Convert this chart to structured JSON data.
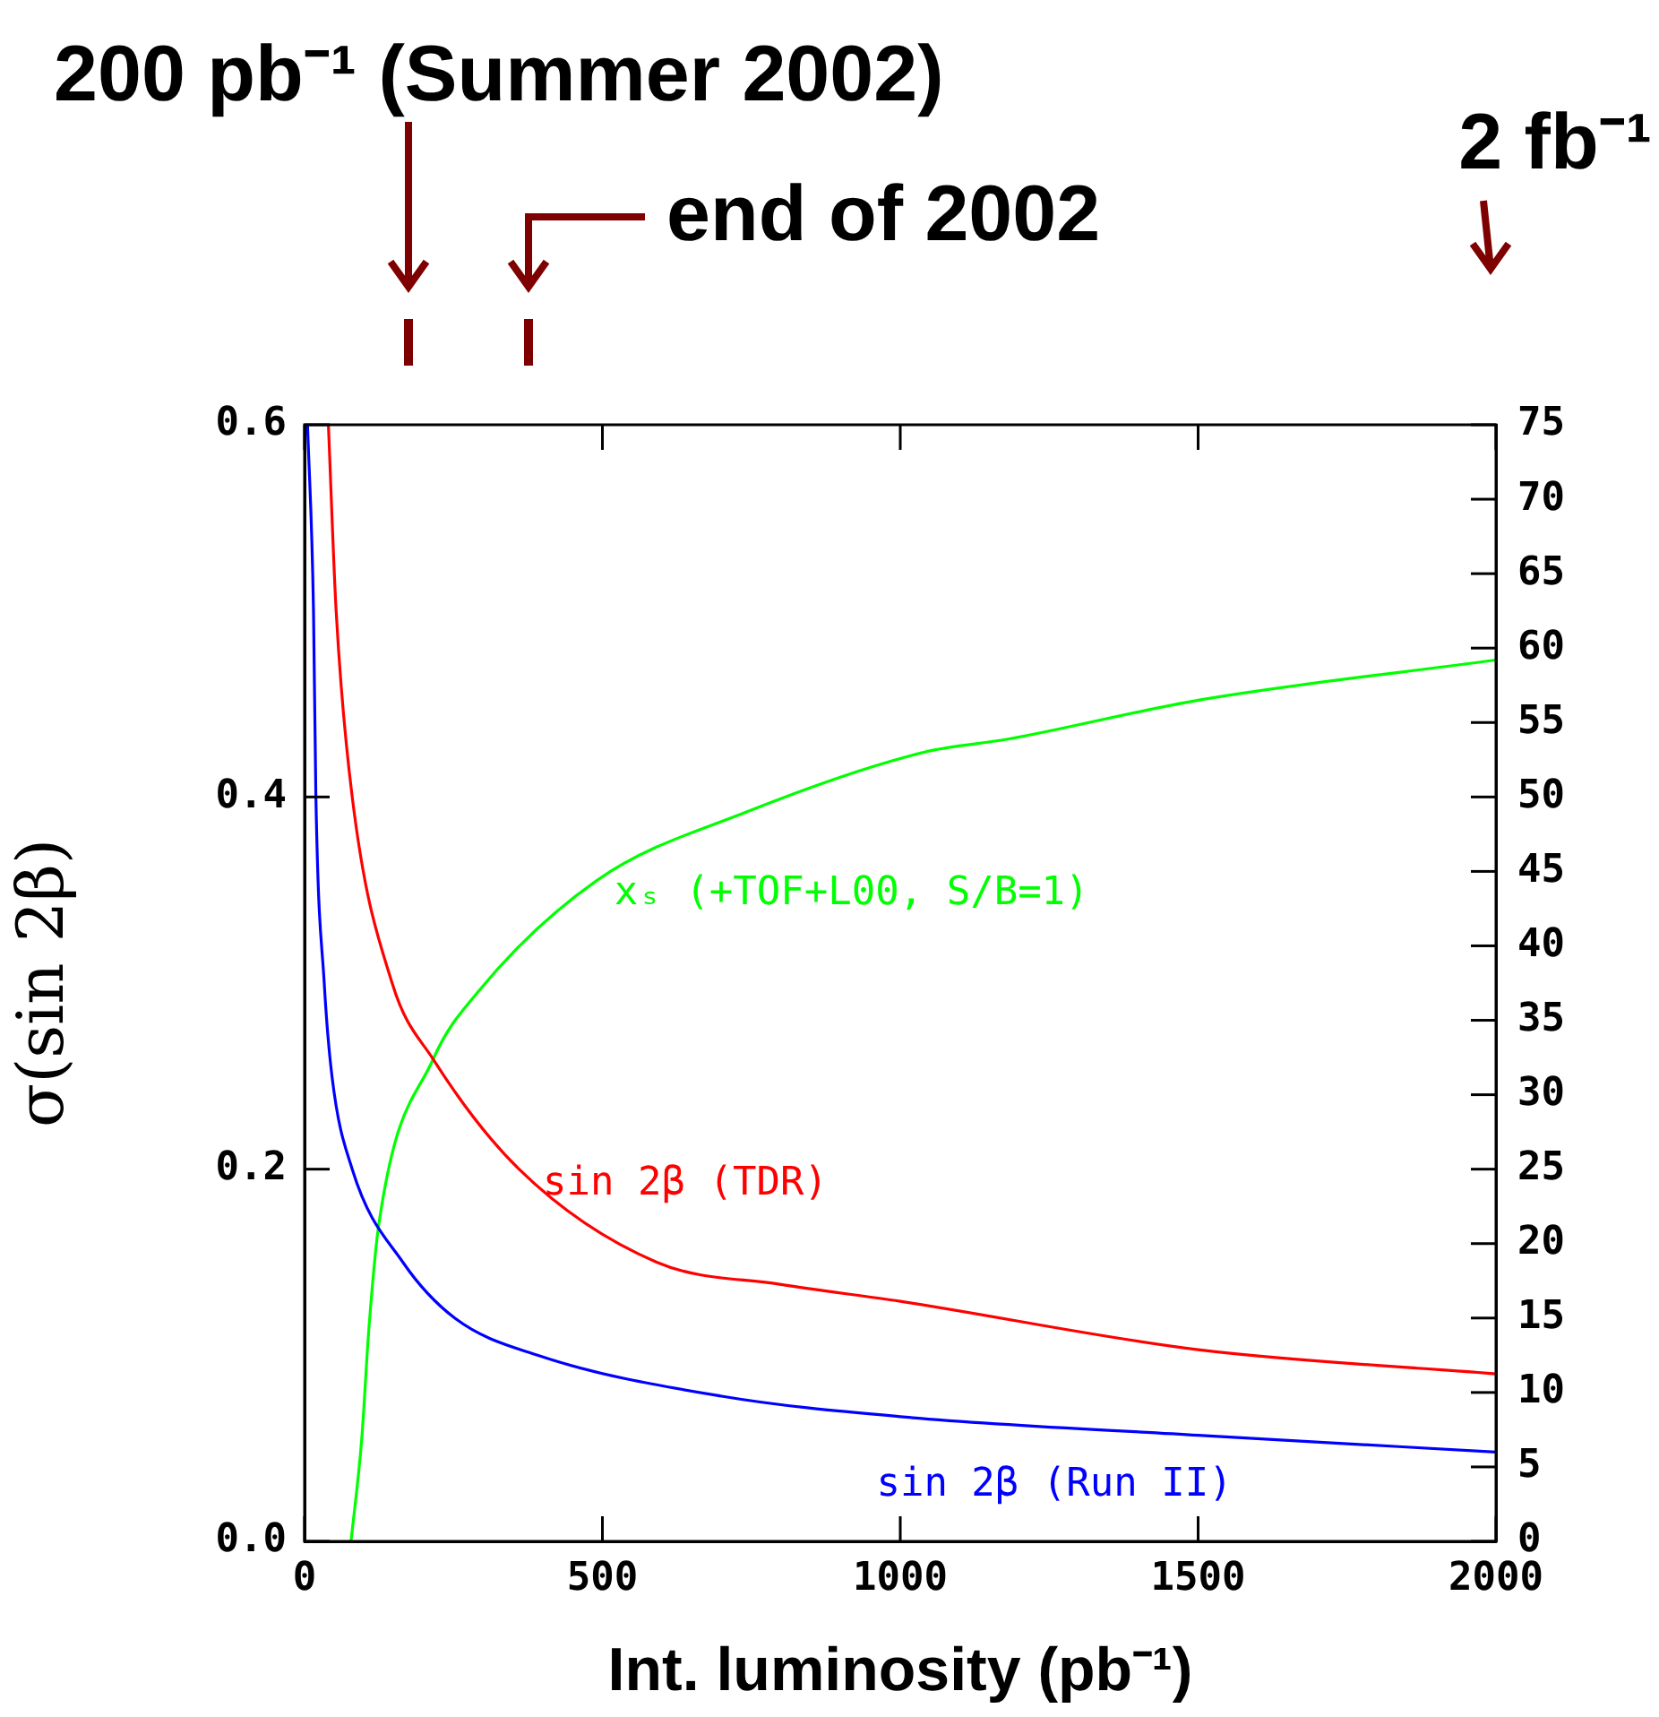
{
  "chart_data": {
    "type": "line",
    "xlabel": "Int. luminosity (pb⁻¹)",
    "ylabel": "σ(sin 2β)",
    "xlim": [
      0,
      2000
    ],
    "xticks": [
      0,
      500,
      1000,
      1500,
      2000
    ],
    "ylim": [
      0,
      0.6
    ],
    "yticks": [
      {
        "value": 0,
        "label": "0.0"
      },
      {
        "value": 0.2,
        "label": "0.2"
      },
      {
        "value": 0.4,
        "label": "0.4"
      },
      {
        "value": 0.6,
        "label": "0.6"
      }
    ],
    "y2lim": [
      0,
      75
    ],
    "y2ticks": [
      0,
      5,
      10,
      15,
      20,
      25,
      30,
      35,
      40,
      45,
      50,
      55,
      60,
      65,
      70,
      75
    ],
    "grid": false,
    "legend": false,
    "marker": "none",
    "line_style": "solid",
    "series": [
      {
        "name": "sin 2β (Run II)",
        "color": "#0000ff",
        "x": [
          5,
          15,
          19,
          33,
          46,
          80,
          165,
          252,
          391,
          700,
          1000,
          1500,
          2000
        ],
        "values": [
          0.6,
          0.5,
          0.4,
          0.3,
          0.25,
          0.2,
          0.15,
          0.12,
          0.1,
          0.078,
          0.067,
          0.057,
          0.048
        ]
      },
      {
        "name": "sin 2β (TDR)",
        "color": "#ff0000",
        "x": [
          40,
          53,
          80,
          147,
          216,
          360,
          591,
          800,
          1000,
          1500,
          2000
        ],
        "values": [
          0.6,
          0.5,
          0.4,
          0.3,
          0.259,
          0.2,
          0.15,
          0.138,
          0.129,
          0.103,
          0.09
        ]
      },
      {
        "name": "xₛ (+TOF+L00, S/B=1)",
        "color": "#00ff00",
        "axis": "y2",
        "x": [
          78,
          96,
          108,
          125,
          216,
          291,
          491,
          742,
          1039,
          1183,
          1500,
          2000
        ],
        "values": [
          0,
          6.9,
          14.3,
          21.4,
          32.4,
          36.9,
          44.4,
          49,
          53,
          53.9,
          56.5,
          59.2
        ]
      }
    ],
    "annotations": [
      "200 pb⁻¹ (Summer 2002)",
      "end of 2002",
      "2 fb⁻¹"
    ]
  }
}
